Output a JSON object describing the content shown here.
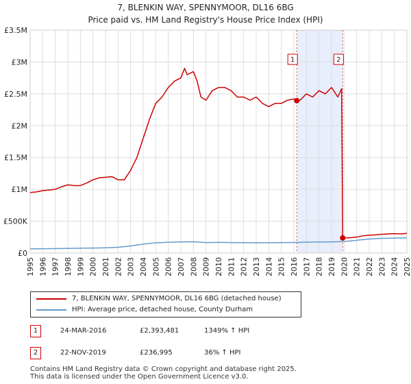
{
  "header": {
    "title": "7, BLENKIN WAY, SPENNYMOOR, DL16 6BG",
    "subtitle": "Price paid vs. HM Land Registry's House Price Index (HPI)"
  },
  "chart_data": {
    "type": "line",
    "title": "7, BLENKIN WAY, SPENNYMOOR, DL16 6BG",
    "subtitle": "Price paid vs. HM Land Registry's House Price Index (HPI)",
    "xlabel": "",
    "ylabel": "",
    "xlim": [
      1995,
      2025
    ],
    "ylim": [
      0,
      3500000
    ],
    "y_ticks": [
      {
        "value": 0,
        "label": "£0"
      },
      {
        "value": 500000,
        "label": "£500K"
      },
      {
        "value": 1000000,
        "label": "£1M"
      },
      {
        "value": 1500000,
        "label": "£1.5M"
      },
      {
        "value": 2000000,
        "label": "£2M"
      },
      {
        "value": 2500000,
        "label": "£2.5M"
      },
      {
        "value": 3000000,
        "label": "£3M"
      },
      {
        "value": 3500000,
        "label": "£3.5M"
      }
    ],
    "x_ticks": [
      "1995",
      "1996",
      "1997",
      "1998",
      "1999",
      "2000",
      "2001",
      "2002",
      "2003",
      "2004",
      "2005",
      "2006",
      "2007",
      "2008",
      "2009",
      "2010",
      "2011",
      "2012",
      "2013",
      "2014",
      "2015",
      "2016",
      "2017",
      "2018",
      "2019",
      "2020",
      "2021",
      "2022",
      "2023",
      "2024",
      "2025"
    ],
    "grid": true,
    "shaded_region": {
      "from": 2016.23,
      "to": 2019.89
    },
    "colors": {
      "price": "#cc0000",
      "hpi": "#6699cc",
      "shade": "#e8eefb",
      "grid": "#dddddd"
    },
    "series": [
      {
        "name": "7, BLENKIN WAY, SPENNYMOOR, DL16 6BG (detached house)",
        "x": [
          1995,
          1995.5,
          1996,
          1996.5,
          1997,
          1997.5,
          1998,
          1998.5,
          1999,
          1999.5,
          2000,
          2000.5,
          2001,
          2001.5,
          2002,
          2002.5,
          2003,
          2003.5,
          2004,
          2004.5,
          2005,
          2005.5,
          2006,
          2006.5,
          2007,
          2007.3,
          2007.5,
          2008,
          2008.3,
          2008.6,
          2009,
          2009.5,
          2010,
          2010.5,
          2011,
          2011.5,
          2012,
          2012.5,
          2013,
          2013.5,
          2014,
          2014.5,
          2015,
          2015.5,
          2016,
          2016.23,
          2016.5,
          2017,
          2017.5,
          2018,
          2018.5,
          2019,
          2019.5,
          2019.8,
          2019.89,
          2020.5,
          2021,
          2021.5,
          2022,
          2022.5,
          2023,
          2023.5,
          2024,
          2024.5,
          2025
        ],
        "values": [
          950000,
          960000,
          980000,
          990000,
          1000000,
          1040000,
          1070000,
          1060000,
          1060000,
          1100000,
          1150000,
          1180000,
          1190000,
          1200000,
          1150000,
          1150000,
          1300000,
          1500000,
          1800000,
          2100000,
          2350000,
          2450000,
          2600000,
          2700000,
          2750000,
          2900000,
          2800000,
          2850000,
          2700000,
          2450000,
          2400000,
          2550000,
          2600000,
          2600000,
          2550000,
          2450000,
          2450000,
          2400000,
          2450000,
          2350000,
          2300000,
          2350000,
          2350000,
          2400000,
          2420000,
          2393481,
          2400000,
          2500000,
          2450000,
          2550000,
          2500000,
          2600000,
          2450000,
          2580000,
          236995,
          240000,
          250000,
          270000,
          280000,
          285000,
          295000,
          300000,
          305000,
          300000,
          310000
        ]
      },
      {
        "name": "HPI: Average price, detached house, County Durham",
        "x": [
          1995,
          1996,
          1997,
          1998,
          1999,
          2000,
          2001,
          2002,
          2003,
          2004,
          2005,
          2006,
          2007,
          2008,
          2009,
          2010,
          2011,
          2012,
          2013,
          2014,
          2015,
          2016,
          2017,
          2018,
          2019,
          2020,
          2021,
          2022,
          2023,
          2024,
          2025
        ],
        "values": [
          65000,
          67000,
          70000,
          72000,
          75000,
          78000,
          82000,
          90000,
          110000,
          140000,
          160000,
          170000,
          175000,
          178000,
          165000,
          168000,
          165000,
          163000,
          160000,
          162000,
          165000,
          166000,
          170000,
          173000,
          176000,
          180000,
          200000,
          220000,
          230000,
          235000,
          240000
        ]
      }
    ],
    "markers": [
      {
        "label": "1",
        "x": 2016.23,
        "value": 2393481
      },
      {
        "label": "2",
        "x": 2019.89,
        "value": 236995
      }
    ]
  },
  "legend": {
    "price_label": "7, BLENKIN WAY, SPENNYMOOR, DL16 6BG (detached house)",
    "hpi_label": "HPI: Average price, detached house, County Durham"
  },
  "transactions": [
    {
      "badge": "1",
      "date": "24-MAR-2016",
      "price": "£2,393,481",
      "hpi": "1349% ↑ HPI"
    },
    {
      "badge": "2",
      "date": "22-NOV-2019",
      "price": "£236,995",
      "hpi": "36% ↑ HPI"
    }
  ],
  "footer": {
    "line1": "Contains HM Land Registry data © Crown copyright and database right 2025.",
    "line2": "This data is licensed under the Open Government Licence v3.0."
  }
}
